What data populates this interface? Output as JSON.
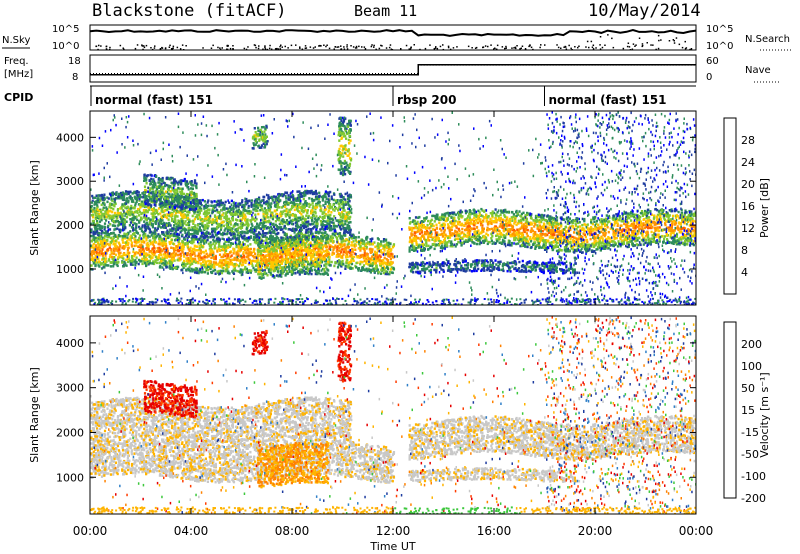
{
  "header": {
    "station": "Blackstone (fitACF)",
    "beam": "Beam 11",
    "date": "10/May/2014"
  },
  "left_labels": {
    "nsky": "N.Sky",
    "freq_1": "Freq.",
    "freq_2": "[MHz]",
    "cpid": "CPID"
  },
  "right_labels": {
    "nsearch": "N.Search",
    "nave": "Nave"
  },
  "strip_ticks": {
    "nsky_left": [
      "10^5",
      "10^0"
    ],
    "nsky_right": [
      "10^5",
      "10^0"
    ],
    "freq_left": [
      "18",
      "8"
    ],
    "nave_right": [
      "60",
      "0"
    ]
  },
  "cpid_modes": [
    {
      "label": "normal (fast) 151",
      "start_h": 0
    },
    {
      "label": "rbsp 200",
      "start_h": 12
    },
    {
      "label": "normal (fast) 151",
      "start_h": 18
    }
  ],
  "power_panel": {
    "ylabel": "Slant Range [km]",
    "colorbar_label": "Power [dB]",
    "colorbar_ticks": [
      "28",
      "24",
      "20",
      "16",
      "12",
      "8",
      "4"
    ],
    "colors": [
      "#ff0000",
      "#ff5a00",
      "#ff9600",
      "#ffc800",
      "#7fc832",
      "#2d8c5a",
      "#1e3ca0",
      "#0000ff"
    ]
  },
  "velocity_panel": {
    "ylabel": "Slant Range [km]",
    "colorbar_label": "Velocity [m s⁻¹]",
    "colorbar_ticks": [
      "200",
      "100",
      "50",
      "15",
      "-15",
      "-50",
      "-100",
      "-200"
    ],
    "colors": [
      "#1e3ca0",
      "#2f7fc8",
      "#3cc83c",
      "#c8c8c8",
      "#ffb400",
      "#ff8200",
      "#ff3c00",
      "#e60000"
    ]
  },
  "x_axis": {
    "label": "Time UT",
    "ticks": [
      "00:00",
      "04:00",
      "08:00",
      "12:00",
      "16:00",
      "20:00",
      "00:00"
    ]
  },
  "y_axis_ticks": [
    "1000",
    "2000",
    "3000",
    "4000"
  ],
  "chart_data": {
    "type": "heatmap",
    "title": "Blackstone (fitACF)   Beam 11   10/May/2014",
    "xlabel": "Time UT",
    "ylabel": "Slant Range [km]",
    "xlim": [
      0,
      24
    ],
    "ylim": [
      180,
      4600
    ],
    "power_colorbar": {
      "label": "Power [dB]",
      "range": [
        0,
        32
      ],
      "ticks": [
        4,
        8,
        12,
        16,
        20,
        24,
        28
      ]
    },
    "velocity_colorbar": {
      "label": "Velocity [m s-1]",
      "levels": [
        -200,
        -100,
        -50,
        -15,
        15,
        50,
        100,
        200
      ]
    },
    "frequency_mhz": [
      {
        "hours": [
          0,
          13
        ],
        "value": 10.5
      },
      {
        "hours": [
          13,
          24
        ],
        "value": 14.5
      }
    ],
    "nave": [
      {
        "hours": [
          0,
          13
        ],
        "value": 18
      },
      {
        "hours": [
          13,
          24
        ],
        "value": 38
      }
    ],
    "scatter_bands": [
      {
        "hours": [
          0,
          12
        ],
        "range_km": [
          1000,
          1800
        ],
        "power_db": 22,
        "velocity": "-15 to 15"
      },
      {
        "hours": [
          0,
          10.3
        ],
        "range_km": [
          1800,
          2700
        ],
        "power_db": 14,
        "velocity": "-15 to 15"
      },
      {
        "hours": [
          6.6,
          9.4
        ],
        "range_km": [
          800,
          1700
        ],
        "power_db": 20,
        "velocity": "-50"
      },
      {
        "hours": [
          2.1,
          4.2
        ],
        "range_km": [
          2400,
          3100
        ],
        "power_db": 12,
        "velocity": "-200"
      },
      {
        "hours": [
          6.4,
          7.0
        ],
        "range_km": [
          3800,
          4300
        ],
        "power_db": 14,
        "velocity": "-200"
      },
      {
        "hours": [
          9.8,
          10.3
        ],
        "range_km": [
          3100,
          4400
        ],
        "power_db": 16,
        "velocity": "-200"
      },
      {
        "hours": [
          12.6,
          24
        ],
        "range_km": [
          1500,
          2300
        ],
        "power_db": 22,
        "velocity": "-15 to 15"
      },
      {
        "hours": [
          12.6,
          19.2
        ],
        "range_km": [
          950,
          1200
        ],
        "power_db": 8,
        "velocity": "-15 to 15"
      }
    ]
  }
}
